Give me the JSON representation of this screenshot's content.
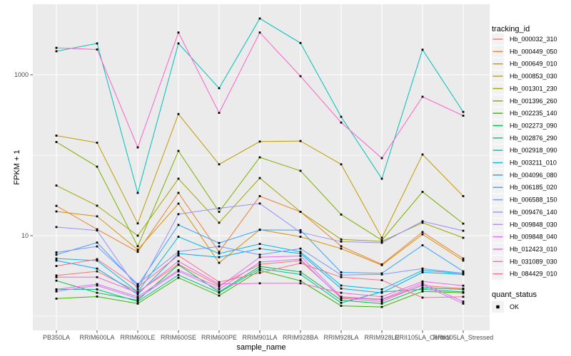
{
  "chart_data": {
    "type": "line",
    "xlabel": "sample_name",
    "ylabel": "FPKM + 1",
    "y_scale": "log10",
    "ylim": [
      1.1,
      7500
    ],
    "y_ticks": [
      {
        "value": 1000,
        "label": "1000"
      },
      {
        "value": 10,
        "label": "10"
      }
    ],
    "y_minor": [
      1,
      100
    ],
    "grid": "on",
    "legend_position": "right",
    "legend_title": "tracking_id",
    "categories": [
      "PB350LA",
      "RRIM600LA",
      "RRIM600LE",
      "RRIM600SE",
      "RRIM600PE",
      "RRIM901LA",
      "RRIM928BA",
      "RRIM928LA",
      "RRIM928LE",
      "RRII105LA_Control",
      "RRII105LA_Stressed"
    ],
    "series": [
      {
        "name": "Hb_000032_310",
        "color": "#F8766D",
        "values": [
          3.2,
          3.6,
          2.0,
          4.4,
          2.4,
          4.4,
          4.9,
          1.7,
          1.6,
          2.4,
          2.2
        ]
      },
      {
        "name": "Hb_000449_050",
        "color": "#EA8331",
        "values": [
          23.5,
          12.0,
          6.3,
          34,
          6.3,
          31,
          19.8,
          7.4,
          4.4,
          11.1,
          5.2
        ]
      },
      {
        "name": "Hb_000649_010",
        "color": "#D89000",
        "values": [
          20,
          17.4,
          6.7,
          25,
          4.6,
          11.9,
          9.7,
          6.9,
          4.3,
          10.4,
          4.9
        ]
      },
      {
        "name": "Hb_000853_030",
        "color": "#C09B00",
        "values": [
          175,
          143,
          14.2,
          325,
          77,
          148,
          150,
          77,
          9.4,
          102,
          31
        ]
      },
      {
        "name": "Hb_001301_230",
        "color": "#A3A500",
        "values": [
          42,
          23.6,
          10.0,
          51,
          14.5,
          52,
          19.8,
          9.0,
          8.5,
          14.5,
          9.4
        ]
      },
      {
        "name": "Hb_001396_260",
        "color": "#7CAE00",
        "values": [
          146,
          72,
          7.4,
          113,
          19.8,
          94,
          64,
          18.3,
          8.8,
          35,
          14.1
        ]
      },
      {
        "name": "Hb_002235_140",
        "color": "#39B600",
        "values": [
          1.65,
          1.75,
          1.43,
          3.0,
          1.8,
          3.7,
          2.75,
          1.34,
          1.3,
          2.03,
          1.95
        ]
      },
      {
        "name": "Hb_002273_090",
        "color": "#00BB4E",
        "values": [
          2.76,
          1.95,
          1.58,
          4.35,
          2.0,
          4.15,
          3.55,
          1.58,
          1.43,
          2.25,
          2.15
        ]
      },
      {
        "name": "Hb_002876_290",
        "color": "#00C08B",
        "values": [
          2.15,
          2.15,
          1.52,
          3.25,
          1.95,
          3.9,
          3.3,
          1.46,
          2.0,
          2.15,
          2.0
        ]
      },
      {
        "name": "Hb_002918_090",
        "color": "#00C0B8",
        "values": [
          1960,
          2450,
          34,
          2450,
          680,
          5000,
          2480,
          300,
          51,
          2050,
          345
        ]
      },
      {
        "name": "Hb_003211_010",
        "color": "#00BAE0",
        "values": [
          5.2,
          4.9,
          2.0,
          9.7,
          6.0,
          7.9,
          6.3,
          2.4,
          2.15,
          3.7,
          3.4
        ]
      },
      {
        "name": "Hb_004096_080",
        "color": "#00ACFC",
        "values": [
          4.9,
          3.9,
          1.86,
          6.0,
          5.4,
          6.9,
          6.0,
          2.2,
          1.95,
          3.5,
          3.3
        ]
      },
      {
        "name": "Hb_006185_020",
        "color": "#35A2FF",
        "values": [
          5.8,
          8.2,
          2.4,
          13.6,
          8.1,
          11.8,
          11.7,
          3.5,
          3.4,
          7.6,
          3.6
        ]
      },
      {
        "name": "Hb_006588_150",
        "color": "#7C96FF",
        "values": [
          6.2,
          7.35,
          2.5,
          6.35,
          7.35,
          5.8,
          6.9,
          3.25,
          3.3,
          3.9,
          3.4
        ]
      },
      {
        "name": "Hb_009476_140",
        "color": "#9590FF",
        "values": [
          12.8,
          11.6,
          2.15,
          18.5,
          21.9,
          25.1,
          11.0,
          8.45,
          8.15,
          15.1,
          11.5
        ]
      },
      {
        "name": "Hb_009848_030",
        "color": "#C77CFF",
        "values": [
          2.03,
          2.4,
          1.66,
          3.6,
          2.15,
          4.7,
          5.1,
          1.66,
          1.52,
          2.44,
          1.43
        ]
      },
      {
        "name": "Hb_009848_040",
        "color": "#E76BF3",
        "values": [
          2.15,
          2.5,
          1.74,
          3.74,
          2.3,
          5.4,
          5.6,
          1.74,
          1.62,
          2.56,
          1.52
        ]
      },
      {
        "name": "Hb_012423_010",
        "color": "#FA62DB",
        "values": [
          3.05,
          3.05,
          1.95,
          4.8,
          2.5,
          2.56,
          2.56,
          1.95,
          1.74,
          2.7,
          2.39
        ]
      },
      {
        "name": "Hb_031089_030",
        "color": "#FF61C9",
        "values": [
          2160,
          2060,
          125,
          3350,
          336,
          3350,
          960,
          255,
          92,
          533,
          310
        ]
      },
      {
        "name": "Hb_084429_010",
        "color": "#FF6C91",
        "values": [
          4.2,
          5.1,
          2.3,
          5.66,
          2.65,
          3.45,
          4.55,
          3.05,
          2.8,
          1.7,
          1.74
        ]
      }
    ],
    "quant_status": {
      "title": "quant_status",
      "items": [
        {
          "label": "OK",
          "marker": "black-square"
        }
      ]
    }
  },
  "style": {
    "panel_bg": "#EBEBEB",
    "grid_color": "#FFFFFF",
    "tick_label_color": "#4D4D4D",
    "axis_title_color": "#000000",
    "legend_text_color": "#000000",
    "legend_key_bg": "#F2F2F2",
    "marker_color": "#000000",
    "tick_mark_color": "#333333"
  }
}
